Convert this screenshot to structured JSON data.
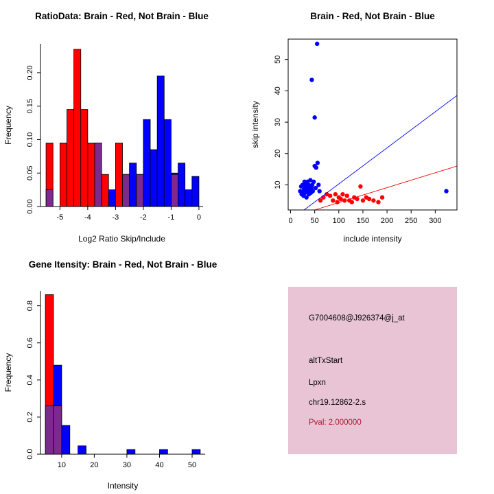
{
  "colors": {
    "red": "#FF0000",
    "blue": "#0000FF",
    "overlap": "#7D2A8E",
    "axis": "#000000",
    "info_box_bg": "#E8C4D4",
    "pval_color": "#BB1133"
  },
  "chart_data": [
    {
      "id": "ratio-hist",
      "type": "histogram",
      "title": "RatioData: Brain - Red, Not Brain - Blue",
      "xlabel": "Log2 Ratio Skip/Include",
      "ylabel": "Frequency",
      "xlim": [
        -5.7,
        0.15
      ],
      "ylim": [
        0,
        0.243
      ],
      "xticks": [
        -5,
        -4,
        -3,
        -2,
        -1,
        0
      ],
      "xtick_labels": [
        "-5",
        "-4",
        "-3",
        "-2",
        "-1",
        "0"
      ],
      "yticks": [
        0,
        0.05,
        0.1,
        0.15,
        0.2
      ],
      "ytick_labels": [
        "0.00",
        "0.05",
        "0.10",
        "0.15",
        "0.20"
      ],
      "bin_width": 0.25,
      "bin_edges": [
        -5.5,
        -5.25,
        -5.0,
        -4.75,
        -4.5,
        -4.25,
        -4.0,
        -3.75,
        -3.5,
        -3.25,
        -3.0,
        -2.75,
        -2.5,
        -2.25,
        -2.0,
        -1.75,
        -1.5,
        -1.25,
        -1.0,
        -0.75,
        -0.5,
        -0.25
      ],
      "series": [
        {
          "name": "Brain",
          "color_key": "red",
          "values": [
            0.095,
            0,
            0.095,
            0.145,
            0.235,
            0.145,
            0.095,
            0.095,
            0.048,
            0,
            0.095,
            0.048,
            0,
            0.048,
            0,
            0,
            0,
            0,
            0.048,
            0,
            0,
            0
          ]
        },
        {
          "name": "Not Brain",
          "color_key": "blue",
          "values": [
            0.025,
            0,
            0,
            0,
            0,
            0,
            0,
            0.095,
            0,
            0.025,
            0,
            0.048,
            0.065,
            0.048,
            0.13,
            0.085,
            0.195,
            0.13,
            0.05,
            0.065,
            0.025,
            0.045
          ]
        }
      ]
    },
    {
      "id": "intensity-scatter",
      "type": "scatter",
      "title": "Brain - Red, Not Brain - Blue",
      "xlabel": "include intensity",
      "ylabel": "skip intensity",
      "xlim": [
        -5,
        345
      ],
      "ylim": [
        2,
        56.5
      ],
      "xticks": [
        0,
        50,
        100,
        150,
        200,
        250,
        300
      ],
      "xtick_labels": [
        "0",
        "50",
        "100",
        "150",
        "200",
        "250",
        "300"
      ],
      "yticks": [
        10,
        20,
        30,
        40,
        50
      ],
      "ytick_labels": [
        "10",
        "20",
        "30",
        "40",
        "50"
      ],
      "series": [
        {
          "name": "Not Brain",
          "color_key": "blue",
          "points": [
            [
              20,
              8
            ],
            [
              22,
              9.5
            ],
            [
              23,
              7
            ],
            [
              25,
              10
            ],
            [
              26,
              8
            ],
            [
              27,
              6.5
            ],
            [
              28,
              9
            ],
            [
              29,
              11
            ],
            [
              30,
              7.5
            ],
            [
              31,
              10
            ],
            [
              32,
              8.5
            ],
            [
              33,
              6
            ],
            [
              34,
              9
            ],
            [
              35,
              11
            ],
            [
              36,
              8
            ],
            [
              37,
              10
            ],
            [
              38,
              7
            ],
            [
              39,
              9.5
            ],
            [
              40,
              8.5
            ],
            [
              41,
              11.5
            ],
            [
              42,
              7.5
            ],
            [
              43,
              9
            ],
            [
              44,
              43.5
            ],
            [
              45,
              10
            ],
            [
              46,
              8
            ],
            [
              48,
              11
            ],
            [
              50,
              31.5
            ],
            [
              50,
              16
            ],
            [
              52,
              9
            ],
            [
              53,
              15.5
            ],
            [
              55,
              55
            ],
            [
              56,
              17
            ],
            [
              58,
              10
            ],
            [
              60,
              8
            ],
            [
              323,
              8
            ]
          ]
        },
        {
          "name": "Brain",
          "color_key": "red",
          "points": [
            [
              62,
              5
            ],
            [
              68,
              6
            ],
            [
              75,
              7
            ],
            [
              82,
              6.5
            ],
            [
              88,
              5
            ],
            [
              93,
              7
            ],
            [
              97,
              4.5
            ],
            [
              100,
              6
            ],
            [
              104,
              5.5
            ],
            [
              108,
              7
            ],
            [
              112,
              5
            ],
            [
              117,
              6.5
            ],
            [
              122,
              5
            ],
            [
              127,
              4.5
            ],
            [
              132,
              6
            ],
            [
              138,
              5.5
            ],
            [
              145,
              9.5
            ],
            [
              150,
              5
            ],
            [
              157,
              6
            ],
            [
              163,
              5.5
            ],
            [
              172,
              5
            ],
            [
              182,
              4.5
            ],
            [
              190,
              6
            ]
          ]
        }
      ],
      "lines": [
        {
          "name": "not-brain-fit",
          "color_key": "blue",
          "from": [
            28,
            2
          ],
          "to": [
            345,
            38.5
          ]
        },
        {
          "name": "brain-fit",
          "color_key": "red",
          "from": [
            50,
            2
          ],
          "to": [
            345,
            16
          ]
        }
      ]
    },
    {
      "id": "gene-hist",
      "type": "histogram",
      "title": "Gene Itensity: Brain - Red, Not Brain - Blue",
      "xlabel": "Intensity",
      "ylabel": "Frequency",
      "xlim": [
        3.5,
        54
      ],
      "ylim": [
        0,
        0.88
      ],
      "xticks": [
        10,
        20,
        30,
        40,
        50
      ],
      "xtick_labels": [
        "10",
        "20",
        "30",
        "40",
        "50"
      ],
      "yticks": [
        0,
        0.2,
        0.4,
        0.6,
        0.8
      ],
      "ytick_labels": [
        "0.0",
        "0.2",
        "0.4",
        "0.6",
        "0.8"
      ],
      "bin_width": 2.5,
      "bin_edges": [
        5,
        7.5,
        10,
        12.5,
        15,
        17.5,
        20,
        22.5,
        25,
        27.5,
        30,
        32.5,
        35,
        37.5,
        40,
        42.5,
        45,
        47.5,
        50,
        52.5
      ],
      "series": [
        {
          "name": "Brain",
          "color_key": "red",
          "values": [
            0.86,
            0.26,
            0,
            0,
            0,
            0,
            0,
            0,
            0,
            0,
            0,
            0,
            0,
            0,
            0,
            0,
            0,
            0,
            0,
            0
          ]
        },
        {
          "name": "Not Brain",
          "color_key": "blue",
          "values": [
            0.26,
            0.48,
            0.155,
            0,
            0.045,
            0,
            0,
            0,
            0,
            0,
            0.025,
            0,
            0,
            0,
            0.025,
            0,
            0,
            0,
            0.025,
            0
          ]
        }
      ]
    }
  ],
  "info_box": {
    "lines": {
      "probe_id": "G7004608@J926374@j_at",
      "event_type": "altTxStart",
      "gene_symbol": "Lpxn",
      "location": "chr19.12862-2.s",
      "pval": "Pval: 2.000000"
    }
  }
}
